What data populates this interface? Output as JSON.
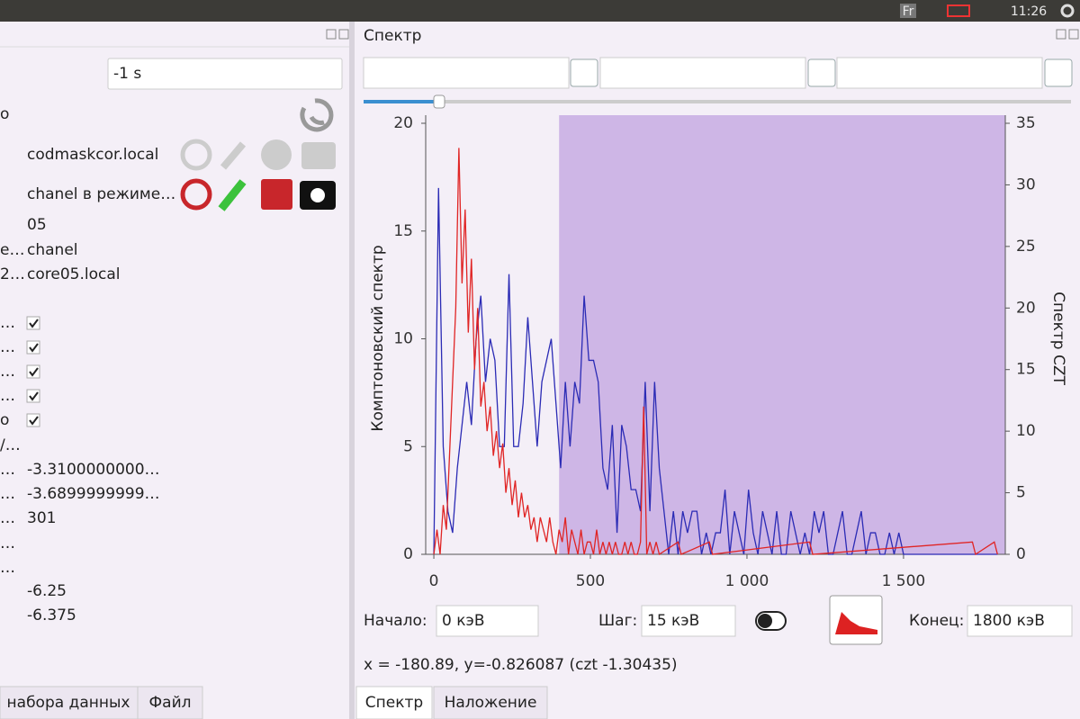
{
  "topbar": {
    "keyboard": "Fr",
    "time": "11:26"
  },
  "left_panel": {
    "interval": "-1 s",
    "rows": [
      {
        "label": "o"
      },
      {
        "value": "codmaskcor.local"
      },
      {
        "value": "chanel в режиме…"
      },
      {
        "value": "05"
      },
      {
        "label": "e…",
        "value": "chanel"
      },
      {
        "label": "2…",
        "value": "core05.local"
      },
      {
        "label": "…",
        "checked": true
      },
      {
        "label": "…",
        "checked": true
      },
      {
        "label": "…",
        "checked": true
      },
      {
        "label": "…",
        "checked": true
      },
      {
        "label": "o",
        "checked": true
      },
      {
        "label": "/…"
      },
      {
        "label": "…",
        "value": "-3.3100000000…"
      },
      {
        "label": "…",
        "value": "-3.6899999999…"
      },
      {
        "label": "…",
        "value": "301"
      },
      {
        "label": "…"
      },
      {
        "label": "…"
      },
      {
        "value": "-6.25"
      },
      {
        "value": "-6.375"
      }
    ],
    "tabs": [
      "набора данных",
      "Файл"
    ]
  },
  "right_panel": {
    "title": "Спектр",
    "controls": {
      "start_label": "Начало:",
      "start": "0 кэВ",
      "step_label": "Шаг:",
      "step": "15 кэВ",
      "end_label": "Конец:",
      "end": "1800 кэВ"
    },
    "status": "x = -180.89, y=-0.826087 (czt -1.30435)",
    "tabs": [
      "Спектр",
      "Наложение"
    ]
  },
  "chart_data": {
    "type": "line",
    "ylabel": "Комптоновский спектр",
    "y2label": "Спектр CZT",
    "xlim": [
      -26,
      1825
    ],
    "ylim": [
      0,
      20
    ],
    "y2lim": [
      0,
      35
    ],
    "xticks": [
      0,
      500,
      {
        "value": 1000,
        "label": "1 000"
      },
      {
        "value": 1500,
        "label": "1 500"
      }
    ],
    "yticks": [
      0,
      5,
      10,
      15,
      20
    ],
    "y2ticks": [
      0,
      5,
      10,
      15,
      20,
      25,
      30,
      35
    ],
    "highlight": {
      "xrange": [
        400,
        1825
      ],
      "color": "#ceb6e6"
    },
    "series": [
      {
        "color": "#2b2bb5",
        "x": [
          0,
          15,
          30,
          45,
          60,
          75,
          90,
          105,
          120,
          135,
          150,
          165,
          180,
          195,
          210,
          225,
          240,
          255,
          270,
          285,
          300,
          315,
          330,
          345,
          360,
          375,
          390,
          405,
          420,
          435,
          450,
          465,
          480,
          495,
          510,
          525,
          540,
          555,
          570,
          585,
          600,
          615,
          630,
          645,
          660,
          675,
          690,
          705,
          720,
          735,
          750,
          765,
          780,
          795,
          810,
          825,
          840,
          855,
          870,
          885,
          900,
          915,
          930,
          945,
          960,
          975,
          990,
          1005,
          1020,
          1035,
          1050,
          1065,
          1080,
          1095,
          1110,
          1125,
          1140,
          1155,
          1170,
          1185,
          1200,
          1215,
          1230,
          1245,
          1260,
          1275,
          1290,
          1305,
          1320,
          1335,
          1350,
          1365,
          1380,
          1395,
          1410,
          1425,
          1440,
          1455,
          1470,
          1485,
          1500,
          1800
        ],
        "values": [
          0,
          17,
          5,
          2,
          1,
          4,
          6,
          8,
          6,
          10,
          12,
          8,
          10,
          9,
          5,
          5,
          13,
          5,
          5,
          7,
          11,
          8,
          5,
          8,
          9,
          10,
          7,
          4,
          8,
          5,
          8,
          7,
          12,
          9,
          9,
          8,
          4,
          3,
          6,
          1,
          6,
          5,
          3,
          3,
          2,
          8,
          2,
          8,
          4,
          2,
          0,
          2,
          0,
          2,
          1,
          2,
          2,
          0,
          1,
          0,
          1,
          1,
          3,
          0,
          2,
          1,
          0,
          3,
          1,
          0,
          2,
          1,
          0,
          2,
          0,
          0,
          2,
          1,
          0,
          1,
          0,
          2,
          1,
          2,
          0,
          0,
          1,
          2,
          0,
          0,
          1,
          2,
          0,
          1,
          1,
          0,
          0,
          1,
          0,
          1,
          0,
          0
        ]
      },
      {
        "color": "#e02424",
        "axis": "y2",
        "x": [
          0,
          10,
          20,
          30,
          40,
          50,
          60,
          70,
          80,
          90,
          100,
          110,
          120,
          130,
          140,
          150,
          160,
          170,
          180,
          190,
          200,
          210,
          220,
          230,
          240,
          250,
          260,
          270,
          280,
          290,
          300,
          310,
          320,
          330,
          340,
          350,
          360,
          370,
          380,
          390,
          400,
          410,
          420,
          430,
          440,
          450,
          460,
          470,
          480,
          490,
          500,
          510,
          520,
          530,
          540,
          550,
          560,
          570,
          580,
          590,
          600,
          610,
          620,
          630,
          640,
          650,
          660,
          670,
          680,
          690,
          700,
          710,
          720,
          780,
          790,
          880,
          890,
          1200,
          1210,
          1720,
          1730,
          1790,
          1800
        ],
        "values": [
          0,
          2,
          0,
          4,
          2,
          8,
          14,
          20,
          33,
          22,
          28,
          18,
          24,
          15,
          20,
          12,
          14,
          10,
          12,
          8,
          10,
          7,
          9,
          5,
          7,
          4,
          6,
          3,
          5,
          3,
          4,
          2,
          3,
          1,
          3,
          2,
          1,
          3,
          1,
          0,
          2,
          1,
          3,
          0,
          2,
          1,
          0,
          2,
          0,
          1,
          1,
          0,
          2,
          0,
          1,
          0,
          1,
          0,
          1,
          0,
          0,
          1,
          0,
          1,
          0,
          0,
          1,
          12,
          0,
          1,
          0,
          1,
          0,
          1,
          0,
          1,
          0,
          1,
          0,
          1,
          0,
          1,
          0
        ]
      }
    ]
  }
}
